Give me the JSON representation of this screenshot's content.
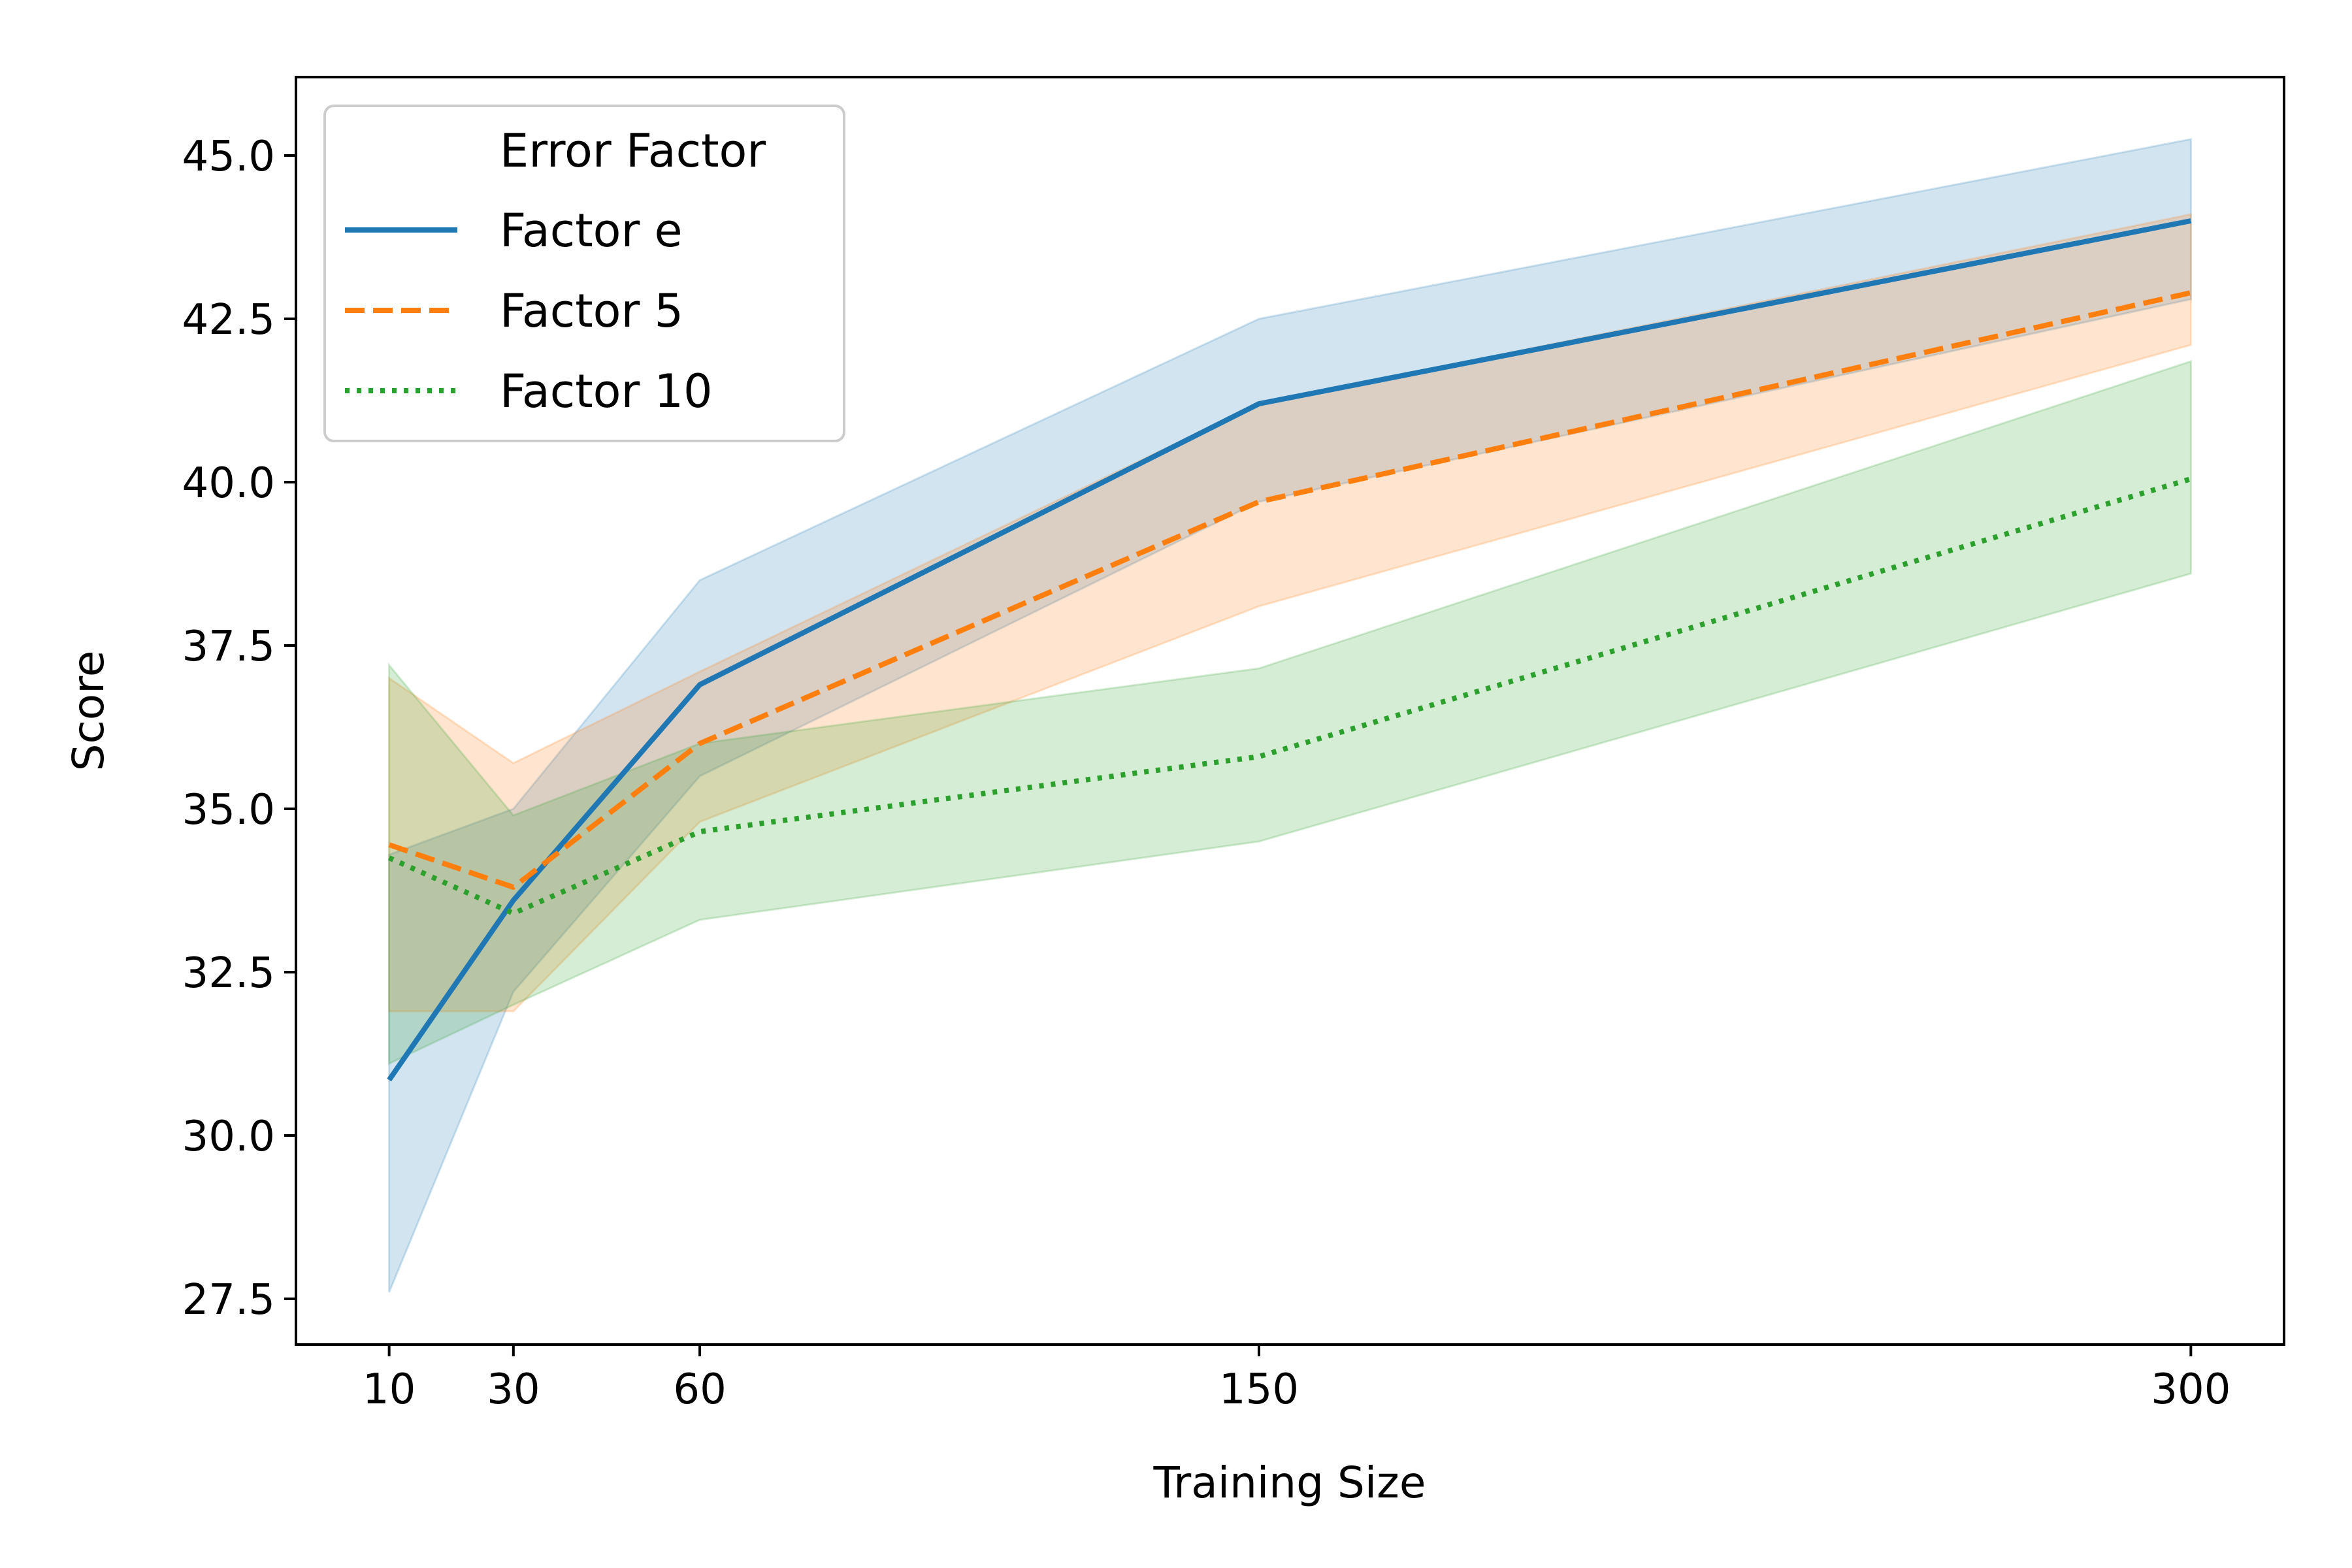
{
  "chart_data": {
    "type": "line",
    "xlabel": "Training Size",
    "ylabel": "Score",
    "x": [
      10,
      30,
      60,
      150,
      300
    ],
    "x_ticks": [
      "10",
      "30",
      "60",
      "150",
      "300"
    ],
    "y_ticks": [
      "27.5",
      "30.0",
      "32.5",
      "35.0",
      "37.5",
      "40.0",
      "42.5",
      "45.0"
    ],
    "xlim": [
      -5,
      315
    ],
    "ylim": [
      26.8,
      46.2
    ],
    "grid": false,
    "legend": {
      "title": "Error Factor",
      "placement": "top-left"
    },
    "series": [
      {
        "name": "Factor e",
        "color": "#1f77b4",
        "style": "solid",
        "values": [
          30.85,
          33.6,
          36.9,
          41.2,
          44.0
        ],
        "ci_low": [
          27.6,
          32.2,
          35.5,
          39.7,
          42.8
        ],
        "ci_high": [
          34.3,
          35.0,
          38.5,
          42.5,
          45.25
        ]
      },
      {
        "name": "Factor 5",
        "color": "#ff7f0e",
        "style": "dashed",
        "values": [
          34.45,
          33.8,
          36.0,
          39.7,
          42.9
        ],
        "ci_low": [
          31.9,
          31.9,
          34.8,
          38.1,
          42.1
        ],
        "ci_high": [
          37.0,
          35.7,
          37.1,
          41.2,
          44.1
        ]
      },
      {
        "name": "Factor 10",
        "color": "#2ca02c",
        "style": "dotted",
        "values": [
          34.25,
          33.4,
          34.65,
          35.8,
          40.05
        ],
        "ci_low": [
          31.1,
          32.0,
          33.3,
          34.5,
          38.6
        ],
        "ci_high": [
          37.2,
          34.9,
          36.0,
          37.15,
          41.85
        ]
      }
    ]
  }
}
